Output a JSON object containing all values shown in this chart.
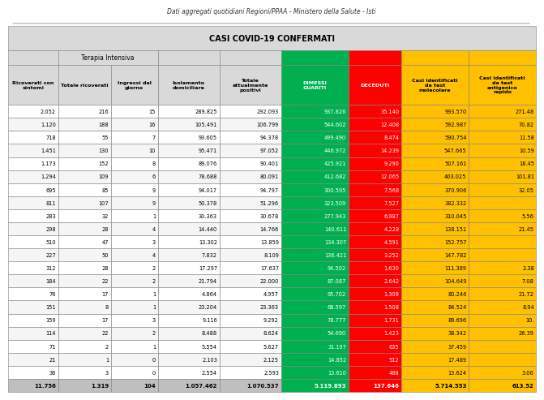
{
  "title_top": "Dati aggregati quotidiani Regioni/PPAA - Ministero della Salute - Isti",
  "title_main": "CASI COVID-19 CONFERMATI",
  "headers": [
    "Ricoverati con\nsintomi",
    "Totale ricoverati",
    "Ingressi del\ngiorno",
    "Isolamento\ndomiciliare",
    "Totale\nattualmente\npositivi",
    "DIMESSI\nGUARITI",
    "DECEDUTI",
    "Casi identificati\nda test\nmolecolare",
    "Casi identificati\nda test\nantigenico\nrapido"
  ],
  "col_colors": [
    "#d9d9d9",
    "#d9d9d9",
    "#d9d9d9",
    "#d9d9d9",
    "#d9d9d9",
    "#00b050",
    "#ff0000",
    "#ffc000",
    "#ffc000"
  ],
  "rows": [
    [
      "2.052",
      "216",
      "15",
      "289.825",
      "292.093",
      "937.826",
      "35.140",
      "993.570",
      "271.48"
    ],
    [
      "1.120",
      "188",
      "16",
      "105.491",
      "106.799",
      "544.602",
      "12.408",
      "592.987",
      "70.82"
    ],
    [
      "718",
      "55",
      "7",
      "93.605",
      "94.378",
      "499.490",
      "8.474",
      "590.754",
      "11.58"
    ],
    [
      "1.451",
      "130",
      "10",
      "95.471",
      "97.052",
      "446.972",
      "14.239",
      "547.665",
      "10.59"
    ],
    [
      "1.173",
      "152",
      "8",
      "89.076",
      "90.401",
      "425.921",
      "9.290",
      "507.161",
      "18.45"
    ],
    [
      "1.294",
      "109",
      "6",
      "78.688",
      "80.091",
      "412.682",
      "12.065",
      "403.025",
      "101.81"
    ],
    [
      "695",
      "85",
      "9",
      "94.017",
      "94.797",
      "300.595",
      "7.568",
      "370.906",
      "32.05"
    ],
    [
      "811",
      "107",
      "9",
      "50.378",
      "51.296",
      "323.509",
      "7.527",
      "382.332",
      ""
    ],
    [
      "283",
      "32",
      "1",
      "30.363",
      "30.678",
      "277.943",
      "6.987",
      "310.045",
      "5.56"
    ],
    [
      "298",
      "28",
      "4",
      "14.440",
      "14.766",
      "140.611",
      "4.228",
      "138.151",
      "21.45"
    ],
    [
      "510",
      "47",
      "3",
      "13.302",
      "13.859",
      "134.307",
      "4.591",
      "152.757",
      ""
    ],
    [
      "227",
      "50",
      "4",
      "7.832",
      "8.109",
      "136.421",
      "3.252",
      "147.782",
      ""
    ],
    [
      "312",
      "28",
      "2",
      "17.297",
      "17.637",
      "94.502",
      "1.630",
      "111.389",
      "2.38"
    ],
    [
      "184",
      "22",
      "2",
      "21.794",
      "22.000",
      "87.087",
      "2.642",
      "104.649",
      "7.08"
    ],
    [
      "76",
      "17",
      "1",
      "4.864",
      "4.957",
      "95.702",
      "1.308",
      "80.246",
      "21.72"
    ],
    [
      "151",
      "8",
      "1",
      "23.204",
      "23.363",
      "68.597",
      "1.508",
      "84.524",
      "8.94"
    ],
    [
      "159",
      "17",
      "3",
      "9.116",
      "9.292",
      "78.777",
      "1.731",
      "89.696",
      "10."
    ],
    [
      "114",
      "22",
      "2",
      "8.488",
      "8.624",
      "54.690",
      "1.423",
      "38.342",
      "26.39"
    ],
    [
      "71",
      "2",
      "1",
      "5.554",
      "5.627",
      "31.197",
      "635",
      "37.459",
      ""
    ],
    [
      "21",
      "1",
      "0",
      "2.103",
      "2.125",
      "14.852",
      "512",
      "17.489",
      ""
    ],
    [
      "36",
      "3",
      "0",
      "2.554",
      "2.593",
      "13.610",
      "488",
      "13.624",
      "3.06"
    ]
  ],
  "total_row": [
    "11.756",
    "1.319",
    "104",
    "1.057.462",
    "1.070.537",
    "5.119.893",
    "137.646",
    "5.714.553",
    "613.52"
  ],
  "total_row_colors": [
    "#bfbfbf",
    "#bfbfbf",
    "#bfbfbf",
    "#bfbfbf",
    "#bfbfbf",
    "#00b050",
    "#ff0000",
    "#ffc000",
    "#ffc000"
  ],
  "bg_color": "#ffffff",
  "border_color": "#808080"
}
